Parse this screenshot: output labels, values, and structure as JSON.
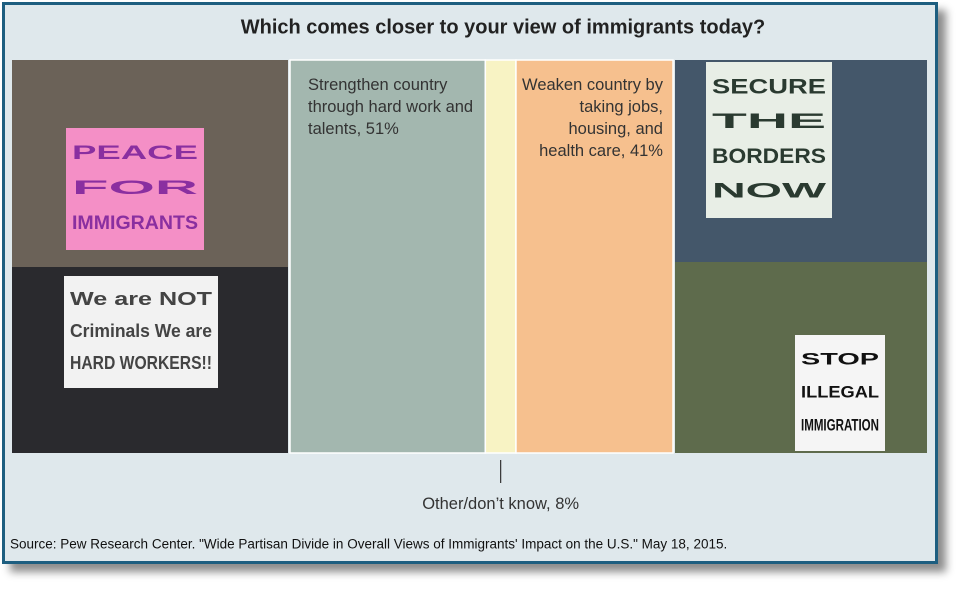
{
  "chart_data": {
    "type": "stacked-bar",
    "title": "Which comes closer to your view of immigrants today?",
    "categories": [
      "Strengthen country through hard work and talents,",
      "Other/don’t know,",
      "Weaken country by taking jobs, housing, and health care,"
    ],
    "values": [
      51,
      8,
      41
    ],
    "value_labels": [
      "51%",
      "8%",
      "41%"
    ],
    "colors": [
      "#a3b7af",
      "#f8f3c4",
      "#f6c08e"
    ],
    "source": "Source: Pew Research Center. \"Wide Partisan Divide in Overall Views of Immigrants' Impact on the U.S.\" May 18, 2015."
  },
  "photos": [
    {
      "sign": [
        "PEACE",
        "FOR",
        "IMMIGRANTS"
      ]
    },
    {
      "sign": [
        "We are NOT",
        "Criminals We are",
        "HARD WORKERS!!"
      ]
    },
    {
      "sign": [
        "SECURE",
        "THE",
        "BORDERS",
        "NOW"
      ]
    },
    {
      "sign": [
        "STOP",
        "ILLEGAL",
        "IMMIGRATION"
      ]
    }
  ]
}
